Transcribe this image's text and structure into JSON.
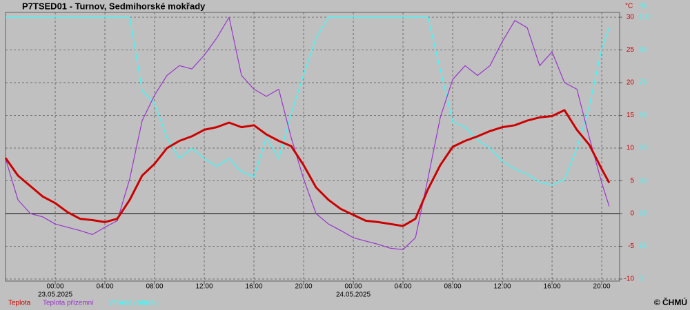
{
  "chart_data": {
    "type": "line",
    "title": "P7TSED01 - Turnov, Sedmihorské mokřady",
    "source": "© ČHMÚ",
    "y_unit": "°C",
    "y2_unit": "%",
    "x": [
      -4,
      -3,
      -2,
      -1,
      0,
      1,
      2,
      3,
      4,
      5,
      6,
      7,
      8,
      9,
      10,
      11,
      12,
      13,
      14,
      15,
      16,
      17,
      18,
      19,
      20,
      21,
      22,
      23,
      24,
      25,
      26,
      27,
      28,
      29,
      30,
      31,
      32,
      33,
      34,
      35,
      36,
      37,
      38,
      39,
      40,
      41,
      42,
      43,
      44,
      44.6
    ],
    "xlim": [
      -4,
      45.44
    ],
    "xticks": [
      {
        "value": 0,
        "label": "00:00"
      },
      {
        "value": 4,
        "label": "04:00"
      },
      {
        "value": 8,
        "label": "08:00"
      },
      {
        "value": 12,
        "label": "12:00"
      },
      {
        "value": 16,
        "label": "16:00"
      },
      {
        "value": 20,
        "label": "20:00"
      },
      {
        "value": 24,
        "label": "00:00"
      },
      {
        "value": 28,
        "label": "04:00"
      },
      {
        "value": 32,
        "label": "08:00"
      },
      {
        "value": 36,
        "label": "12:00"
      },
      {
        "value": 40,
        "label": "16:00"
      },
      {
        "value": 44,
        "label": "20:00"
      }
    ],
    "date_labels": [
      {
        "value": 0,
        "label": "23.05.2025"
      },
      {
        "value": 24,
        "label": "24.05.2025"
      }
    ],
    "ylim": [
      -10,
      30
    ],
    "yticks": [
      -10,
      -5,
      0,
      5,
      10,
      15,
      20,
      25,
      30
    ],
    "y2lim": [
      0,
      100
    ],
    "y2ticks": [
      0,
      {
        "value": 12.5,
        "label": "13"
      },
      25,
      {
        "value": 37.5,
        "label": "38"
      },
      50,
      {
        "value": 62.5,
        "label": "63"
      },
      75,
      {
        "value": 87.5,
        "label": "88"
      },
      100
    ],
    "hline": 0,
    "grid": true,
    "series": [
      {
        "name": "Teplota",
        "color": "#cc0000",
        "values": [
          8.5,
          5.8,
          4.2,
          2.6,
          1.6,
          0.2,
          -0.8,
          -1.0,
          -1.3,
          -0.8,
          2.1,
          5.8,
          7.6,
          10.0,
          11.1,
          11.8,
          12.8,
          13.2,
          13.9,
          13.2,
          13.5,
          12.1,
          11.1,
          10.3,
          7.4,
          4.0,
          2.1,
          0.7,
          -0.2,
          -1.1,
          -1.3,
          -1.6,
          -1.9,
          -0.8,
          3.7,
          7.4,
          10.2,
          11.1,
          11.8,
          12.6,
          13.2,
          13.5,
          14.2,
          14.7,
          14.9,
          15.8,
          12.8,
          10.5,
          6.8,
          4.7
        ]
      },
      {
        "name": "Teplota přízemní",
        "color": "#9933cc",
        "values": [
          8.4,
          2.1,
          0,
          -0.5,
          -1.6,
          -2.1,
          -2.6,
          -3.2,
          -2.1,
          -1.1,
          5.3,
          14.2,
          18.1,
          21.1,
          22.6,
          22.1,
          24.2,
          26.8,
          30,
          21.1,
          19,
          17.9,
          19,
          11.6,
          5.3,
          0,
          -1.6,
          -2.6,
          -3.7,
          -4.2,
          -4.7,
          -5.3,
          -5.5,
          -3.7,
          5.3,
          14.7,
          20.5,
          22.6,
          21.1,
          22.6,
          26.3,
          29.5,
          28.4,
          22.6,
          24.7,
          20,
          19,
          11.6,
          4.7,
          1.1
        ]
      },
      {
        "name": "Vlhkost vzduchu",
        "color": "#33ffff",
        "axis": "y2",
        "values": [
          100,
          100,
          100,
          100,
          100,
          100,
          100,
          100,
          100,
          100,
          100,
          72,
          67,
          54,
          46,
          50,
          46,
          43,
          46,
          41,
          39,
          54,
          46,
          63,
          78,
          92,
          100,
          100,
          100,
          100,
          100,
          100,
          100,
          100,
          100,
          80,
          60,
          58,
          53,
          50,
          45,
          42,
          40,
          37,
          36,
          38,
          50,
          66,
          88,
          96
        ]
      }
    ]
  }
}
